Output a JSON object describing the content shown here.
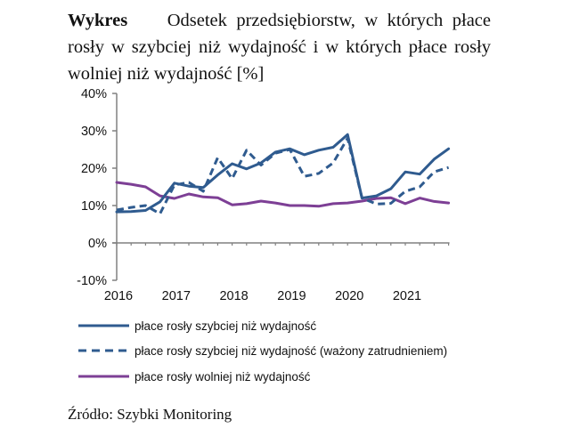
{
  "title": {
    "lead": "Wykres",
    "text": "Odsetek przedsiębiorstw, w których płace rosły w szybciej niż wydajność i w których płace rosły wolniej niż wydajność [%]"
  },
  "source": "Źródło: Szybki Monitoring",
  "colors": {
    "blue": "#2f5b8f",
    "purple": "#7d3f95",
    "axis": "#808080"
  },
  "chart_data": {
    "type": "line",
    "title": "Odsetek przedsiębiorstw, w których płace rosły w szybciej niż wydajność i w których płace rosły wolniej niż wydajność [%]",
    "xlabel": "",
    "ylabel": "",
    "ylim": [
      -10,
      40
    ],
    "yticks": [
      "40%",
      "30%",
      "20%",
      "10%",
      "0%",
      "-10%"
    ],
    "ytick_values": [
      40,
      30,
      20,
      10,
      0,
      -10
    ],
    "xtick_labels": [
      "2016",
      "2017",
      "2018",
      "2019",
      "2020",
      "2021"
    ],
    "frequency": "quarterly",
    "x": [
      "2016Q1",
      "2016Q2",
      "2016Q3",
      "2016Q4",
      "2017Q1",
      "2017Q2",
      "2017Q3",
      "2017Q4",
      "2018Q1",
      "2018Q2",
      "2018Q3",
      "2018Q4",
      "2019Q1",
      "2019Q2",
      "2019Q3",
      "2019Q4",
      "2020Q1",
      "2020Q2",
      "2020Q3",
      "2020Q4",
      "2021Q1",
      "2021Q2",
      "2021Q3",
      "2021Q4"
    ],
    "grid": false,
    "legend_position": "bottom",
    "series": [
      {
        "name": "płace rosły szybciej niż wydajność",
        "style": "solid",
        "color": "#2f5b8f",
        "values": [
          8.3,
          8.4,
          8.7,
          11.0,
          16.0,
          15.2,
          14.8,
          18.2,
          21.2,
          19.8,
          21.4,
          24.3,
          25.2,
          23.6,
          24.8,
          25.6,
          29.0,
          12.0,
          12.6,
          14.5,
          19.0,
          18.4,
          22.4,
          25.2
        ]
      },
      {
        "name": "płace rosły szybciej niż wydajność (ważony zatrudnieniem)",
        "style": "dashed",
        "color": "#2f5b8f",
        "values": [
          8.8,
          9.5,
          10.0,
          7.8,
          15.5,
          16.2,
          13.8,
          22.8,
          17.2,
          24.8,
          20.8,
          24.0,
          25.0,
          17.8,
          18.6,
          21.4,
          28.0,
          12.0,
          10.4,
          10.6,
          13.8,
          15.0,
          19.0,
          20.2
        ]
      },
      {
        "name": "płace rosły wolniej niż wydajność",
        "style": "solid",
        "color": "#7d3f95",
        "values": [
          16.2,
          15.7,
          15.0,
          12.6,
          11.9,
          13.1,
          12.3,
          12.1,
          10.2,
          10.5,
          11.2,
          10.7,
          10.0,
          10.0,
          9.8,
          10.5,
          10.7,
          11.2,
          11.9,
          12.1,
          10.5,
          12.0,
          11.1,
          10.7
        ]
      }
    ]
  }
}
